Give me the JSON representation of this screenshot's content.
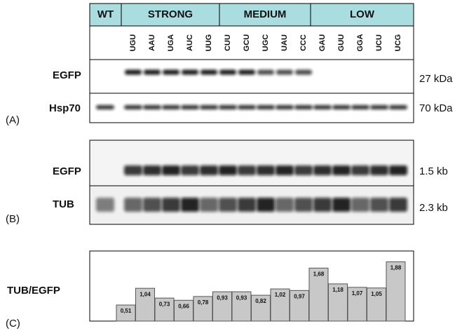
{
  "header": {
    "groups": [
      "WT",
      "STRONG",
      "MEDIUM",
      "LOW"
    ],
    "codons": [
      "UGU",
      "AAU",
      "UGA",
      "AUC",
      "UUG",
      "CUU",
      "GCU",
      "UGC",
      "UAU",
      "CCC",
      "GAU",
      "GUU",
      "GGA",
      "UCU",
      "UCG"
    ]
  },
  "panel_a": {
    "label": "(A)",
    "rows": [
      {
        "name": "EGFP",
        "size": "27 kDa"
      },
      {
        "name": "Hsp70",
        "size": "70 kDa"
      }
    ]
  },
  "panel_b": {
    "label": "(B)",
    "rows": [
      {
        "name": "EGFP",
        "size": "1.5 kb"
      },
      {
        "name": "TUB",
        "size": "2.3 kb"
      }
    ]
  },
  "chart_data": {
    "type": "bar",
    "label": "(C)",
    "ylabel": "TUB/EGFP",
    "color": "#c8c8c8",
    "values": [
      0.51,
      1.04,
      0.73,
      0.66,
      0.78,
      0.93,
      0.93,
      0.82,
      1.02,
      0.97,
      1.68,
      1.18,
      1.07,
      1.05,
      1.88
    ],
    "value_labels": [
      "0,51",
      "1,04",
      "0,73",
      "0,66",
      "0,78",
      "0,93",
      "0,93",
      "0,82",
      "1,02",
      "0,97",
      "1,68",
      "1,18",
      "1,07",
      "1,05",
      "1,88"
    ]
  }
}
